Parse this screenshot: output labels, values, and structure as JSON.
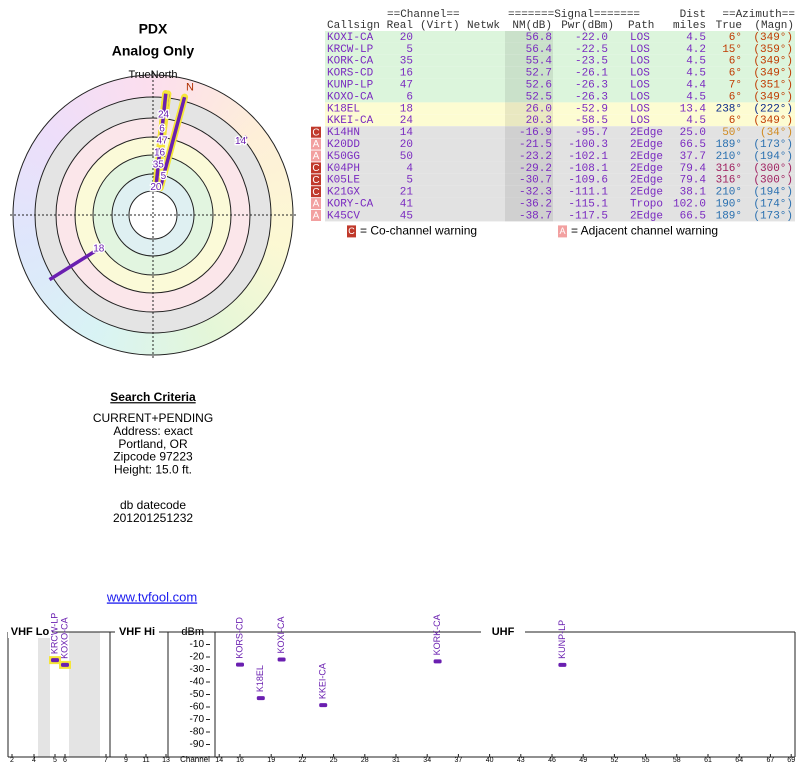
{
  "header": {
    "title": "PDX",
    "subtitle": "Analog Only",
    "north_label": "TrueNorth"
  },
  "search": {
    "title": "Search Criteria",
    "lines": [
      "CURRENT+PENDING",
      "Address: exact",
      "Portland, OR",
      "Zipcode 97223",
      "Height: 15.0 ft."
    ],
    "datecode_label": "db datecode",
    "datecode": "201201251232"
  },
  "link": "www.tvfool.com",
  "polar": {
    "north": "N",
    "color": "#6a1fb0",
    "highlight_color": "#f5e63a",
    "stations": [
      {
        "label": "20",
        "azimuth": 6,
        "nm": 56.8,
        "highlight": true
      },
      {
        "label": "5",
        "azimuth": 15,
        "nm": 56.4,
        "highlight": true
      },
      {
        "label": "35",
        "azimuth": 6,
        "nm": 55.4,
        "highlight": true
      },
      {
        "label": "16",
        "azimuth": 6,
        "nm": 52.7,
        "highlight": true
      },
      {
        "label": "47",
        "azimuth": 7,
        "nm": 52.6,
        "highlight": true
      },
      {
        "label": "6",
        "azimuth": 6,
        "nm": 52.5,
        "highlight": true
      },
      {
        "label": "18",
        "azimuth": 238,
        "nm": 26.0,
        "highlight": false
      },
      {
        "label": "24",
        "azimuth": 6,
        "nm": 20.3,
        "highlight": true
      },
      {
        "label": "14",
        "azimuth": 50,
        "nm": -16.9,
        "highlight": false
      }
    ]
  },
  "table": {
    "group_headers": [
      "==Channel==",
      "=======Signal=======",
      "Dist",
      "==Azimuth=="
    ],
    "columns": [
      "Callsign",
      "Real",
      "(Virt)",
      "Netwk",
      "NM(dB)",
      "Pwr(dBm)",
      "Path",
      "miles",
      "True",
      "(Magn)"
    ],
    "rows": [
      {
        "callsign": "KOXI-CA",
        "real": "20",
        "nm": "56.8",
        "pwr": "-22.0",
        "path": "LOS",
        "dist": "4.5",
        "true": "6°",
        "magn": "(349°)",
        "bg": "#dcf5dc",
        "azimuth_color": "#c03a00"
      },
      {
        "callsign": "KRCW-LP",
        "real": "5",
        "nm": "56.4",
        "pwr": "-22.5",
        "path": "LOS",
        "dist": "4.2",
        "true": "15°",
        "magn": "(359°)",
        "bg": "#dcf5dc",
        "azimuth_color": "#c03a00"
      },
      {
        "callsign": "KORK-CA",
        "real": "35",
        "nm": "55.4",
        "pwr": "-23.5",
        "path": "LOS",
        "dist": "4.5",
        "true": "6°",
        "magn": "(349°)",
        "bg": "#dcf5dc",
        "azimuth_color": "#c03a00"
      },
      {
        "callsign": "KORS-CD",
        "real": "16",
        "nm": "52.7",
        "pwr": "-26.1",
        "path": "LOS",
        "dist": "4.5",
        "true": "6°",
        "magn": "(349°)",
        "bg": "#dcf5dc",
        "azimuth_color": "#c03a00"
      },
      {
        "callsign": "KUNP-LP",
        "real": "47",
        "nm": "52.6",
        "pwr": "-26.3",
        "path": "LOS",
        "dist": "4.4",
        "true": "7°",
        "magn": "(351°)",
        "bg": "#dcf5dc",
        "azimuth_color": "#c03a00"
      },
      {
        "callsign": "KOXO-CA",
        "real": "6",
        "nm": "52.5",
        "pwr": "-26.3",
        "path": "LOS",
        "dist": "4.5",
        "true": "6°",
        "magn": "(349°)",
        "bg": "#dcf5dc",
        "azimuth_color": "#c03a00"
      },
      {
        "callsign": "K18EL",
        "real": "18",
        "nm": "26.0",
        "pwr": "-52.9",
        "path": "LOS",
        "dist": "13.4",
        "true": "238°",
        "magn": "(222°)",
        "bg": "#fdfcd2",
        "azimuth_color": "#0a2a8a"
      },
      {
        "callsign": "KKEI-CA",
        "real": "24",
        "nm": "20.3",
        "pwr": "-58.5",
        "path": "LOS",
        "dist": "4.5",
        "true": "6°",
        "magn": "(349°)",
        "bg": "#fdfcd2",
        "azimuth_color": "#c03a00"
      },
      {
        "callsign": "K14HN",
        "real": "14",
        "nm": "-16.9",
        "pwr": "-95.7",
        "path": "2Edge",
        "dist": "25.0",
        "true": "50°",
        "magn": "(34°)",
        "bg": "#e2e2e2",
        "azimuth_color": "#d08a20",
        "warning": "C"
      },
      {
        "callsign": "K20DD",
        "real": "20",
        "nm": "-21.5",
        "pwr": "-100.3",
        "path": "2Edge",
        "dist": "66.5",
        "true": "189°",
        "magn": "(173°)",
        "bg": "#e2e2e2",
        "azimuth_color": "#2a70b0",
        "warning": "A"
      },
      {
        "callsign": "K50GG",
        "real": "50",
        "nm": "-23.2",
        "pwr": "-102.1",
        "path": "2Edge",
        "dist": "37.7",
        "true": "210°",
        "magn": "(194°)",
        "bg": "#e2e2e2",
        "azimuth_color": "#2a70b0",
        "warning": "A"
      },
      {
        "callsign": "K04PH",
        "real": "4",
        "nm": "-29.2",
        "pwr": "-108.1",
        "path": "2Edge",
        "dist": "79.4",
        "true": "316°",
        "magn": "(300°)",
        "bg": "#e2e2e2",
        "azimuth_color": "#a02060",
        "warning": "C"
      },
      {
        "callsign": "K05LE",
        "real": "5",
        "nm": "-30.7",
        "pwr": "-109.6",
        "path": "2Edge",
        "dist": "79.4",
        "true": "316°",
        "magn": "(300°)",
        "bg": "#e2e2e2",
        "azimuth_color": "#a02060",
        "warning": "C"
      },
      {
        "callsign": "K21GX",
        "real": "21",
        "nm": "-32.3",
        "pwr": "-111.1",
        "path": "2Edge",
        "dist": "38.1",
        "true": "210°",
        "magn": "(194°)",
        "bg": "#e2e2e2",
        "azimuth_color": "#2a70b0",
        "warning": "C"
      },
      {
        "callsign": "KORY-CA",
        "real": "41",
        "nm": "-36.2",
        "pwr": "-115.1",
        "path": "Tropo",
        "dist": "102.0",
        "true": "190°",
        "magn": "(174°)",
        "bg": "#e2e2e2",
        "azimuth_color": "#2a70b0",
        "warning": "A"
      },
      {
        "callsign": "K45CV",
        "real": "45",
        "nm": "-38.7",
        "pwr": "-117.5",
        "path": "2Edge",
        "dist": "66.5",
        "true": "189°",
        "magn": "(173°)",
        "bg": "#e2e2e2",
        "azimuth_color": "#2a70b0",
        "warning": "A"
      }
    ],
    "legend": [
      {
        "icon": "C",
        "text": "= Co-channel warning",
        "color": "#c0392b"
      },
      {
        "icon": "A",
        "text": "= Adjacent channel warning",
        "color": "#f2a0a0"
      }
    ]
  },
  "spectrum": {
    "ylabel": "dBm",
    "xlabel": "Channel",
    "ylim": [
      -100,
      0
    ],
    "yticks": [
      -10,
      -20,
      -30,
      -40,
      -50,
      -60,
      -70,
      -80,
      -90
    ],
    "xticks": [
      2,
      4,
      5,
      6,
      7,
      9,
      11,
      13,
      14,
      16,
      19,
      22,
      25,
      28,
      31,
      34,
      37,
      40,
      43,
      46,
      49,
      52,
      55,
      58,
      61,
      64,
      67,
      69
    ],
    "bands": [
      "VHF Lo",
      "VHF Hi",
      "UHF"
    ],
    "color": "#6a1fb0",
    "highlight_color": "#f5e63a",
    "stations": [
      {
        "name": "KRCW-LP",
        "channel": 5,
        "pwr": -22.5,
        "highlight": true
      },
      {
        "name": "KOXO-CA",
        "channel": 6,
        "pwr": -26.3,
        "highlight": true
      },
      {
        "name": "KORS-CD",
        "channel": 16,
        "pwr": -26.1,
        "highlight": false
      },
      {
        "name": "K18EL",
        "channel": 18,
        "pwr": -52.9,
        "highlight": false
      },
      {
        "name": "KOXI-CA",
        "channel": 20,
        "pwr": -22.0,
        "highlight": false
      },
      {
        "name": "KKEI-CA",
        "channel": 24,
        "pwr": -58.5,
        "highlight": false
      },
      {
        "name": "KORK-CA",
        "channel": 35,
        "pwr": -23.5,
        "highlight": false
      },
      {
        "name": "KUNP-LP",
        "channel": 47,
        "pwr": -26.3,
        "highlight": false
      }
    ]
  }
}
